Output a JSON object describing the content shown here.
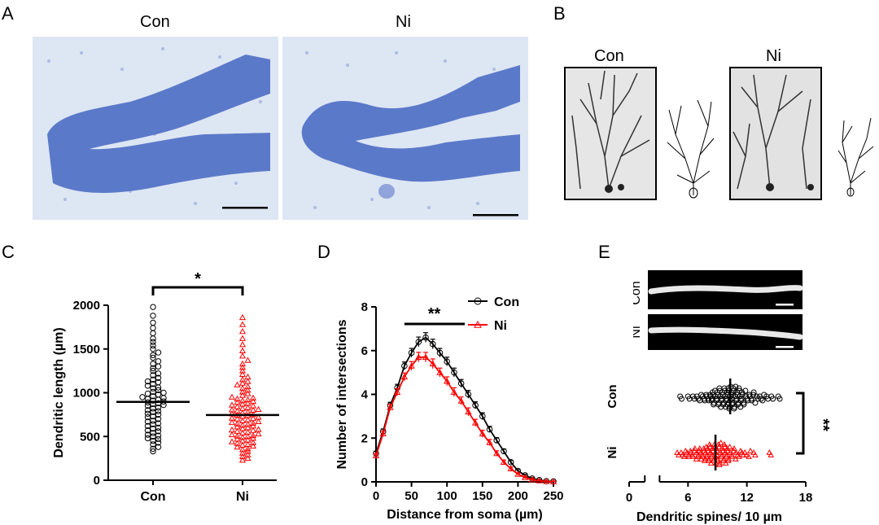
{
  "figure": {
    "panels": {
      "A": {
        "letter": "A",
        "label_con": "Con",
        "label_ni": "Ni"
      },
      "B": {
        "letter": "B",
        "label_con": "Con",
        "label_ni": "Ni"
      },
      "C": {
        "letter": "C"
      },
      "D": {
        "letter": "D"
      },
      "E": {
        "letter": "E",
        "label_con": "Con",
        "label_ni": "Ni"
      }
    },
    "colors": {
      "con": "#000000",
      "ni": "#ff0000",
      "nissl": "#5b79c9"
    }
  },
  "chart_data": [
    {
      "id": "C",
      "type": "scatter",
      "xlabel": "",
      "ylabel": "Dendritic length (µm)",
      "categories": [
        "Con",
        "Ni"
      ],
      "ylim": [
        0,
        2000
      ],
      "yticks": [
        "0",
        "500",
        "1000",
        "1500",
        "2000"
      ],
      "significance": "*",
      "series": [
        {
          "name": "Con",
          "color": "#000000",
          "marker": "circle",
          "mean": 895,
          "values": [
            330,
            360,
            380,
            410,
            430,
            450,
            470,
            480,
            500,
            510,
            520,
            540,
            560,
            570,
            590,
            600,
            620,
            640,
            650,
            670,
            680,
            700,
            720,
            730,
            750,
            760,
            780,
            790,
            800,
            820,
            830,
            850,
            860,
            870,
            880,
            890,
            900,
            910,
            920,
            930,
            940,
            950,
            960,
            980,
            990,
            1000,
            1010,
            1030,
            1050,
            1060,
            1080,
            1100,
            1120,
            1130,
            1150,
            1170,
            1200,
            1220,
            1250,
            1280,
            1300,
            1330,
            1360,
            1400,
            1430,
            1460,
            1500,
            1540,
            1580,
            1620,
            1680,
            1740,
            1800,
            1880,
            1980
          ]
        },
        {
          "name": "Ni",
          "color": "#ff0000",
          "marker": "triangle",
          "mean": 745,
          "values": [
            230,
            250,
            270,
            290,
            310,
            330,
            350,
            360,
            380,
            390,
            400,
            410,
            420,
            430,
            440,
            450,
            460,
            470,
            480,
            490,
            500,
            505,
            510,
            520,
            530,
            540,
            550,
            560,
            570,
            575,
            580,
            590,
            600,
            610,
            620,
            630,
            640,
            645,
            650,
            660,
            670,
            680,
            690,
            700,
            705,
            710,
            720,
            730,
            740,
            745,
            750,
            760,
            770,
            780,
            790,
            800,
            805,
            810,
            820,
            830,
            840,
            850,
            860,
            870,
            880,
            890,
            900,
            910,
            920,
            930,
            940,
            950,
            970,
            990,
            1010,
            1030,
            1050,
            1070,
            1090,
            1110,
            1130,
            1150,
            1180,
            1210,
            1250,
            1290,
            1330,
            1370,
            1420,
            1480,
            1550,
            1620,
            1700,
            1780,
            1860
          ]
        }
      ]
    },
    {
      "id": "D",
      "type": "line",
      "xlabel": "Distance from soma (µm)",
      "ylabel": "Number of intersections",
      "xlim": [
        0,
        250
      ],
      "ylim": [
        0,
        8
      ],
      "xticks": [
        "0",
        "50",
        "100",
        "150",
        "200",
        "250"
      ],
      "yticks": [
        "0",
        "2",
        "4",
        "6",
        "8"
      ],
      "significance": "**",
      "legend": "top-right",
      "x": [
        0,
        10,
        20,
        30,
        40,
        50,
        60,
        70,
        80,
        90,
        100,
        110,
        120,
        130,
        140,
        150,
        160,
        170,
        180,
        190,
        200,
        210,
        220,
        230,
        240,
        250
      ],
      "series": [
        {
          "name": "Con",
          "color": "#000000",
          "marker": "circle",
          "values": [
            1.3,
            2.3,
            3.5,
            4.3,
            5.3,
            5.9,
            6.4,
            6.6,
            6.3,
            5.9,
            5.5,
            5.0,
            4.5,
            4.0,
            3.5,
            3.0,
            2.4,
            1.9,
            1.4,
            0.9,
            0.5,
            0.3,
            0.15,
            0.08,
            0.03,
            0.02
          ],
          "err": [
            0.1,
            0.12,
            0.14,
            0.16,
            0.18,
            0.2,
            0.22,
            0.22,
            0.22,
            0.2,
            0.2,
            0.2,
            0.18,
            0.18,
            0.16,
            0.16,
            0.14,
            0.12,
            0.1,
            0.08,
            0.06,
            0.05,
            0.04,
            0.03,
            0.02,
            0.02
          ]
        },
        {
          "name": "Ni",
          "color": "#ff0000",
          "marker": "triangle",
          "values": [
            1.2,
            2.2,
            3.4,
            4.1,
            4.8,
            5.3,
            5.7,
            5.7,
            5.4,
            5.0,
            4.6,
            4.1,
            3.7,
            3.2,
            2.7,
            2.2,
            1.8,
            1.3,
            0.9,
            0.6,
            0.35,
            0.2,
            0.1,
            0.05,
            0.02,
            0.01
          ],
          "err": [
            0.1,
            0.12,
            0.14,
            0.16,
            0.18,
            0.2,
            0.22,
            0.22,
            0.22,
            0.2,
            0.2,
            0.2,
            0.18,
            0.18,
            0.16,
            0.16,
            0.14,
            0.12,
            0.1,
            0.08,
            0.06,
            0.05,
            0.04,
            0.03,
            0.02,
            0.02
          ]
        }
      ]
    },
    {
      "id": "E",
      "type": "scatter",
      "xlabel": "Dendritic spines/ 10 µm",
      "ylabel": "",
      "xlim": [
        0,
        18
      ],
      "xticks": [
        "0",
        "6",
        "12",
        "18"
      ],
      "categories": [
        "Con",
        "Ni"
      ],
      "significance": "**",
      "series": [
        {
          "name": "Con",
          "color": "#000000",
          "marker": "circle",
          "mean": 10.3,
          "values": [
            5.2,
            6.0,
            6.5,
            6.9,
            7.2,
            7.5,
            7.7,
            7.9,
            8.1,
            8.3,
            8.4,
            8.5,
            8.6,
            8.8,
            8.9,
            9.0,
            9.1,
            9.2,
            9.3,
            9.4,
            9.5,
            9.6,
            9.7,
            9.8,
            9.9,
            10.0,
            10.0,
            10.1,
            10.2,
            10.3,
            10.3,
            10.4,
            10.5,
            10.6,
            10.7,
            10.8,
            10.9,
            11.0,
            11.1,
            11.2,
            11.3,
            11.4,
            11.5,
            11.7,
            11.9,
            12.1,
            12.3,
            12.5,
            12.7,
            13.0,
            13.3,
            13.6,
            14.0,
            14.5,
            15.2
          ]
        },
        {
          "name": "Ni",
          "color": "#ff0000",
          "marker": "triangle",
          "mean": 8.8,
          "values": [
            4.9,
            5.3,
            5.6,
            5.9,
            6.1,
            6.3,
            6.5,
            6.7,
            6.9,
            7.0,
            7.2,
            7.3,
            7.5,
            7.6,
            7.7,
            7.8,
            7.9,
            8.0,
            8.1,
            8.2,
            8.3,
            8.4,
            8.5,
            8.6,
            8.7,
            8.8,
            8.8,
            8.9,
            9.0,
            9.1,
            9.2,
            9.3,
            9.4,
            9.5,
            9.6,
            9.7,
            9.8,
            9.9,
            10.0,
            10.1,
            10.3,
            10.5,
            10.7,
            10.9,
            11.2,
            11.5,
            11.8,
            12.2,
            12.7,
            14.3
          ]
        }
      ]
    }
  ]
}
